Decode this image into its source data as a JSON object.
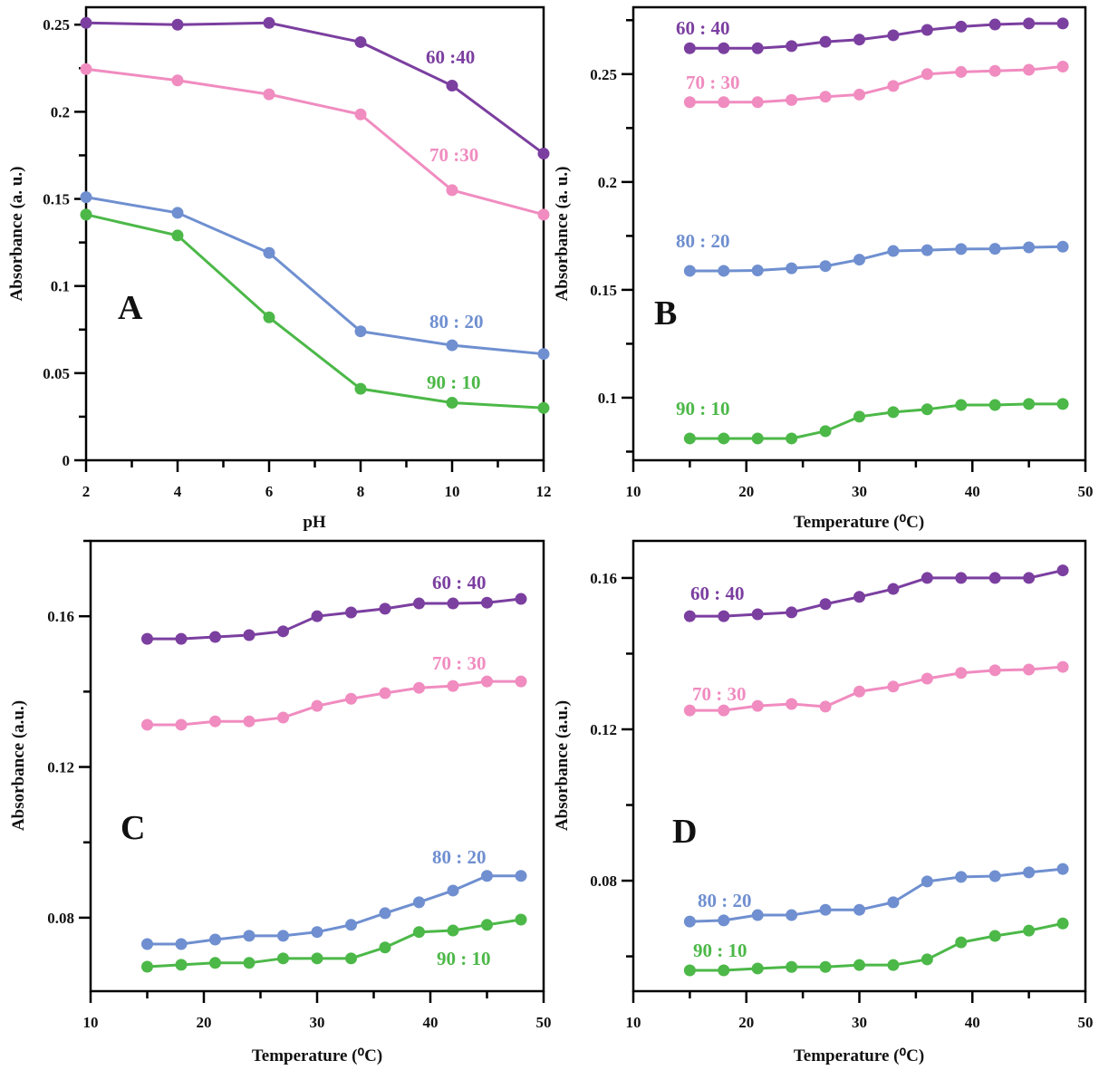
{
  "colors": {
    "60 : 40": "#7b3fa0",
    "70 : 30": "#f08cc0",
    "80 : 20": "#6f8fd0",
    "90 : 10": "#4cb848"
  },
  "chart_data": [
    {
      "panel": "A",
      "type": "line",
      "xlabel": "pH",
      "ylabel": "Absorbance (a. u.)",
      "xlim": [
        2,
        12
      ],
      "ylim": [
        0,
        0.26
      ],
      "xticks": [
        "2",
        "4",
        "6",
        "8",
        "10",
        "12"
      ],
      "yticks": [
        "0",
        "0.05",
        "0.1",
        "0.15",
        "0.2",
        "0.25"
      ],
      "x": [
        2,
        4,
        6,
        8,
        10,
        12
      ],
      "series": [
        {
          "name": "60 :40",
          "color": "#7b3fa0",
          "values": [
            0.251,
            0.25,
            0.251,
            0.24,
            0.215,
            0.176
          ]
        },
        {
          "name": "70 :30",
          "color": "#f08cc0",
          "values": [
            0.2245,
            0.218,
            0.21,
            0.1985,
            0.155,
            0.141
          ]
        },
        {
          "name": "80 : 20",
          "color": "#6f8fd0",
          "values": [
            0.151,
            0.142,
            0.119,
            0.074,
            0.066,
            0.061
          ]
        },
        {
          "name": "90 : 10",
          "color": "#4cb848",
          "values": [
            0.141,
            0.129,
            0.082,
            0.041,
            0.033,
            0.03
          ]
        }
      ]
    },
    {
      "panel": "B",
      "type": "line",
      "xlabel": "Temperature (⁰C)",
      "ylabel": "Absorbance (a. u.)",
      "xlim": [
        10,
        50
      ],
      "ylim": [
        0.071,
        0.281
      ],
      "xticks": [
        "10",
        "20",
        "30",
        "40",
        "50"
      ],
      "yticks": [
        "0.1",
        "0.15",
        "0.2",
        "0.25"
      ],
      "x": [
        15,
        18,
        21,
        24,
        27,
        30,
        33,
        36,
        39,
        42,
        45,
        48
      ],
      "series": [
        {
          "name": "60 : 40",
          "color": "#7b3fa0",
          "values": [
            0.262,
            0.262,
            0.262,
            0.263,
            0.265,
            0.266,
            0.268,
            0.2705,
            0.272,
            0.273,
            0.2735,
            0.2735
          ]
        },
        {
          "name": "70 : 30",
          "color": "#f08cc0",
          "values": [
            0.237,
            0.237,
            0.237,
            0.238,
            0.2395,
            0.2405,
            0.2445,
            0.25,
            0.251,
            0.2515,
            0.252,
            0.2535
          ]
        },
        {
          "name": "80 : 20",
          "color": "#6f8fd0",
          "values": [
            0.1588,
            0.1588,
            0.159,
            0.16,
            0.161,
            0.164,
            0.168,
            0.1684,
            0.1689,
            0.169,
            0.1697,
            0.17
          ]
        },
        {
          "name": "90 : 10",
          "color": "#4cb848",
          "values": [
            0.0811,
            0.0811,
            0.0811,
            0.0811,
            0.0845,
            0.0912,
            0.0933,
            0.0946,
            0.0966,
            0.0966,
            0.0971,
            0.0971
          ]
        }
      ]
    },
    {
      "panel": "C",
      "type": "line",
      "xlabel": "Temperature (⁰C)",
      "ylabel": "Absorbance (a.u.)",
      "xlim": [
        10,
        50
      ],
      "ylim": [
        0.0605,
        0.18
      ],
      "xticks": [
        "10",
        "20",
        "30",
        "40",
        "50"
      ],
      "yticks": [
        "0.08",
        "0.12",
        "0.16"
      ],
      "x": [
        15,
        18,
        21,
        24,
        27,
        30,
        33,
        36,
        39,
        42,
        45,
        48
      ],
      "series": [
        {
          "name": "60 : 40",
          "color": "#7b3fa0",
          "values": [
            0.154,
            0.154,
            0.1545,
            0.155,
            0.156,
            0.16,
            0.161,
            0.162,
            0.1634,
            0.1634,
            0.1636,
            0.1646
          ]
        },
        {
          "name": "70 : 30",
          "color": "#f08cc0",
          "values": [
            0.1312,
            0.1312,
            0.1321,
            0.1321,
            0.1331,
            0.1362,
            0.1381,
            0.1396,
            0.141,
            0.1415,
            0.1427,
            0.1427
          ]
        },
        {
          "name": "80 : 20",
          "color": "#6f8fd0",
          "values": [
            0.073,
            0.073,
            0.0742,
            0.0752,
            0.0752,
            0.0762,
            0.0781,
            0.0812,
            0.0841,
            0.0872,
            0.0911,
            0.0911
          ]
        },
        {
          "name": "90 : 10",
          "color": "#4cb848",
          "values": [
            0.067,
            0.0675,
            0.068,
            0.068,
            0.0692,
            0.0692,
            0.0692,
            0.0721,
            0.0762,
            0.0766,
            0.0781,
            0.0795
          ]
        }
      ]
    },
    {
      "panel": "D",
      "type": "line",
      "xlabel": "Temperature (⁰C)",
      "ylabel": "Absorbance (a.u.)",
      "xlim": [
        10,
        50
      ],
      "ylim": [
        0.0508,
        0.1698
      ],
      "xticks": [
        "10",
        "20",
        "30",
        "40",
        "50"
      ],
      "yticks": [
        "0.08",
        "0.12",
        "0.16"
      ],
      "x": [
        15,
        18,
        21,
        24,
        27,
        30,
        33,
        36,
        39,
        42,
        45,
        48
      ],
      "series": [
        {
          "name": "60 : 40",
          "color": "#7b3fa0",
          "values": [
            0.1499,
            0.1499,
            0.1504,
            0.1509,
            0.1531,
            0.155,
            0.1571,
            0.16,
            0.16,
            0.16,
            0.16,
            0.162
          ]
        },
        {
          "name": "70 : 30",
          "color": "#f08cc0",
          "values": [
            0.125,
            0.125,
            0.1262,
            0.1267,
            0.126,
            0.13,
            0.1313,
            0.1334,
            0.1349,
            0.1356,
            0.1358,
            0.1365
          ]
        },
        {
          "name": "80 : 20",
          "color": "#6f8fd0",
          "values": [
            0.0692,
            0.0695,
            0.0709,
            0.0709,
            0.0723,
            0.0723,
            0.0743,
            0.0798,
            0.081,
            0.0812,
            0.0822,
            0.0831
          ]
        },
        {
          "name": "90 : 10",
          "color": "#4cb848",
          "values": [
            0.0563,
            0.0563,
            0.0568,
            0.0572,
            0.0572,
            0.0577,
            0.0577,
            0.0592,
            0.0637,
            0.0654,
            0.0668,
            0.0687
          ]
        }
      ]
    }
  ]
}
